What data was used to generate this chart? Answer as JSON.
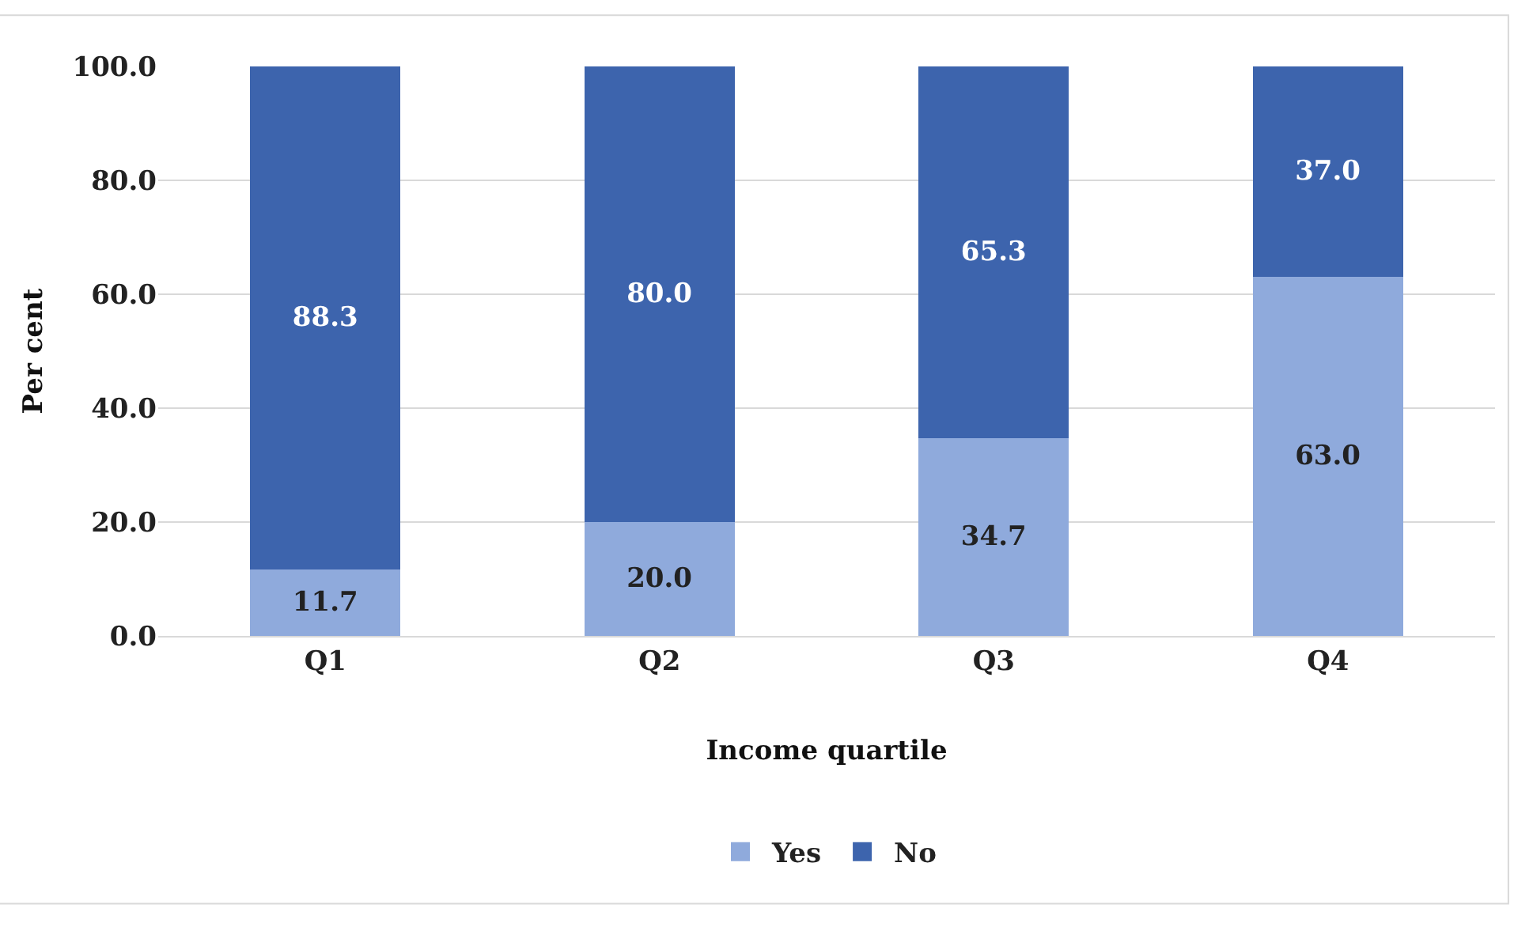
{
  "chart_data": {
    "type": "bar",
    "stacked": true,
    "xlabel": "Income quartile",
    "ylabel": "Per cent",
    "categories": [
      "Q1",
      "Q2",
      "Q3",
      "Q4"
    ],
    "series": [
      {
        "name": "Yes",
        "color": "#8faadc",
        "values": [
          11.7,
          20.0,
          34.7,
          63.0
        ],
        "value_labels": [
          "11.7",
          "20.0",
          "34.7",
          "63.0"
        ]
      },
      {
        "name": "No",
        "color": "#3d64ad",
        "values": [
          88.3,
          80.0,
          65.3,
          37.0
        ],
        "value_labels": [
          "88.3",
          "80.0",
          "65.3",
          "37.0"
        ]
      }
    ],
    "ylim": [
      0,
      100
    ],
    "yticks": [
      {
        "value": 0,
        "label": "0.0"
      },
      {
        "value": 20,
        "label": "20.0"
      },
      {
        "value": 40,
        "label": "40.0"
      },
      {
        "value": 60,
        "label": "60.0"
      },
      {
        "value": 80,
        "label": "80.0"
      },
      {
        "value": 100,
        "label": "100.0"
      }
    ],
    "grid": "y",
    "legend": "bottom"
  }
}
